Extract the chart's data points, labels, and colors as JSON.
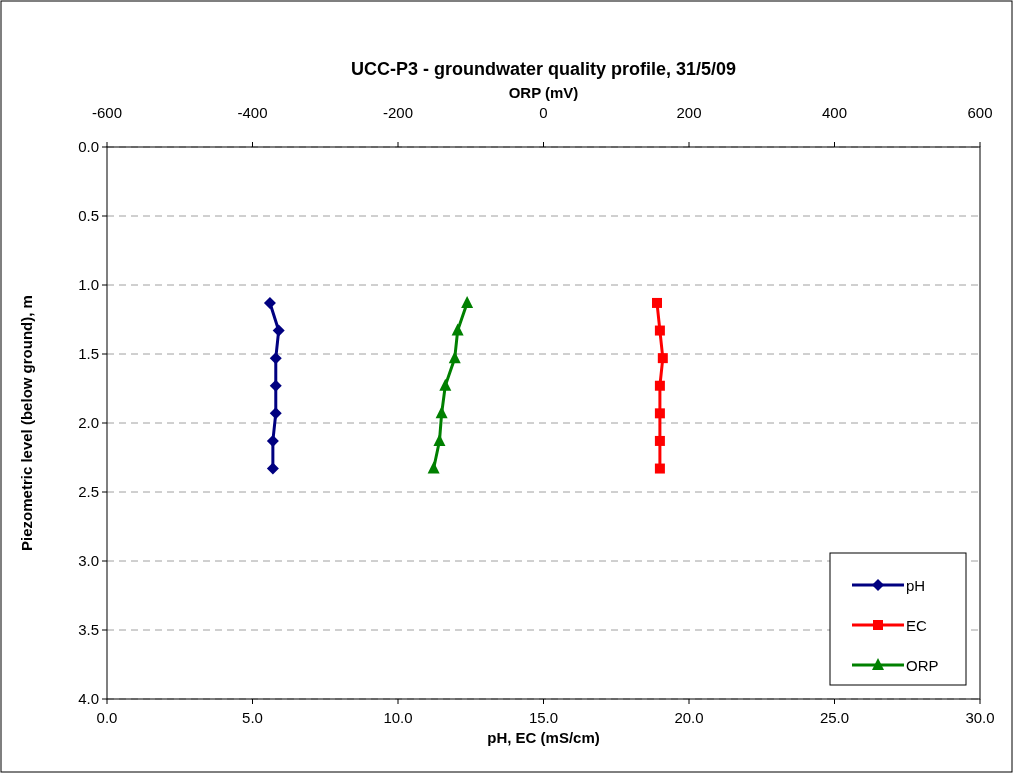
{
  "chart_data": {
    "type": "line",
    "title": "UCC-P3 - groundwater quality profile, 31/5/09",
    "xlabel": "pH, EC (mS/cm)",
    "x2label": "ORP (mV)",
    "ylabel": "Piezometric level (below ground), m",
    "xlim": [
      0,
      30
    ],
    "xticks": [
      {
        "value": 0,
        "label": "0.0"
      },
      {
        "value": 5,
        "label": "5.0"
      },
      {
        "value": 10,
        "label": "10.0"
      },
      {
        "value": 15,
        "label": "15.0"
      },
      {
        "value": 20,
        "label": "20.0"
      },
      {
        "value": 25,
        "label": "25.0"
      },
      {
        "value": 30,
        "label": "30.0"
      }
    ],
    "x2lim": [
      -600,
      600
    ],
    "x2ticks": [
      -600,
      -400,
      -200,
      0,
      200,
      400,
      600
    ],
    "ylim": [
      4,
      0
    ],
    "yticks": [
      {
        "value": 0,
        "label": "0.0"
      },
      {
        "value": 0.5,
        "label": "0.5"
      },
      {
        "value": 1,
        "label": "1.0"
      },
      {
        "value": 1.5,
        "label": "1.5"
      },
      {
        "value": 2,
        "label": "2.0"
      },
      {
        "value": 2.5,
        "label": "2.5"
      },
      {
        "value": 3,
        "label": "3.0"
      },
      {
        "value": 3.5,
        "label": "3.5"
      },
      {
        "value": 4,
        "label": "4.0"
      }
    ],
    "grid": "y",
    "legend": "bottom right",
    "line_style": "solid",
    "series": [
      {
        "name": "pH",
        "color": "#000080",
        "marker": "diamond",
        "x": [
          5.6,
          5.9,
          5.8,
          5.8,
          5.8,
          5.7,
          5.7
        ],
        "values": [
          1.13,
          1.33,
          1.53,
          1.73,
          1.93,
          2.13,
          2.33
        ]
      },
      {
        "name": "EC",
        "color": "#ff0000",
        "marker": "square",
        "x": [
          18.9,
          19.0,
          19.1,
          19.0,
          19.0,
          19.0,
          19.0
        ],
        "values": [
          1.13,
          1.33,
          1.53,
          1.73,
          1.93,
          2.13,
          2.33
        ]
      },
      {
        "name": "ORP",
        "color": "#008000",
        "marker": "triangle",
        "axis": "x2",
        "x": [
          -105,
          -118,
          -122,
          -135,
          -140,
          -143,
          -151
        ],
        "values": [
          1.13,
          1.33,
          1.53,
          1.73,
          1.93,
          2.13,
          2.33
        ]
      }
    ]
  }
}
